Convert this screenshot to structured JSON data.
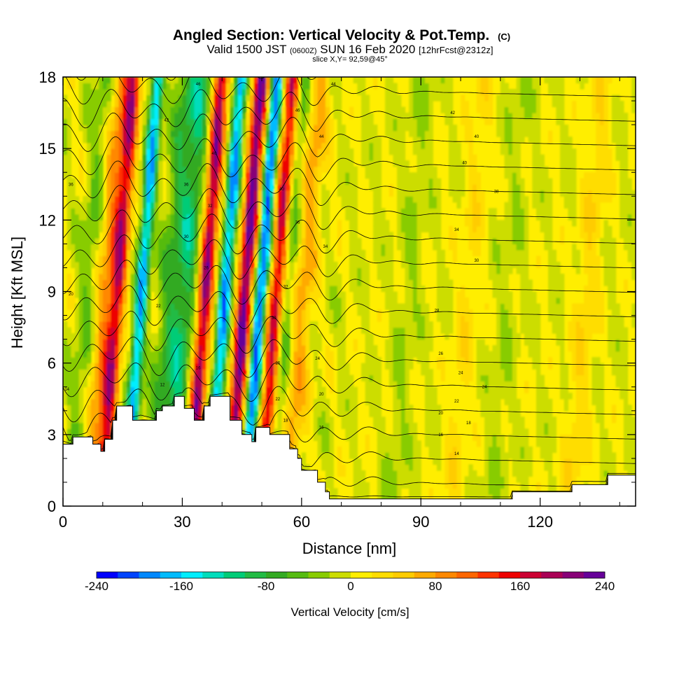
{
  "header": {
    "title_main": "Angled Section: Vertical Velocity & Pot.Temp.",
    "title_unit": "(C)",
    "valid_prefix": "Valid 1500 JST",
    "valid_utc": "(0600Z)",
    "valid_date": "SUN 16 Feb 2020",
    "forecast": "[12hrFcst@2312z]",
    "slice": "slice X,Y= 92,59@45°"
  },
  "chart_data": {
    "type": "heatmap",
    "xlabel": "Distance [nm]",
    "ylabel": "Height [Kft MSL]",
    "xlim": [
      0,
      144
    ],
    "ylim": [
      0,
      18
    ],
    "x_ticks": [
      0,
      30,
      60,
      90,
      120
    ],
    "y_ticks": [
      0,
      3,
      6,
      9,
      12,
      15,
      18
    ],
    "colorbar": {
      "title": "Vertical Velocity [cm/s]",
      "min": -240,
      "max": 240,
      "tick_values": [
        -240,
        -160,
        -80,
        0,
        80,
        160,
        240
      ],
      "tick_labels": [
        "-240",
        "-160",
        "-80",
        "0",
        "80",
        "160",
        "240"
      ],
      "colors": [
        "#0000ff",
        "#0044ff",
        "#0088ff",
        "#00bbff",
        "#00eeff",
        "#00ddbb",
        "#00cc77",
        "#22bb44",
        "#33aa22",
        "#55bb11",
        "#88cc00",
        "#ccdd00",
        "#ffee00",
        "#ffdd00",
        "#ffcc00",
        "#ffaa00",
        "#ff8800",
        "#ff6600",
        "#ff3300",
        "#ee0000",
        "#cc0033",
        "#aa0055",
        "#880077",
        "#660099"
      ]
    },
    "updraft_bands": [
      {
        "x": 12,
        "w": 150
      },
      {
        "x": 34,
        "w": 200
      },
      {
        "x": 44,
        "w": 230
      },
      {
        "x": 52,
        "w": 190
      },
      {
        "x": 58,
        "w": 90
      },
      {
        "x": 9,
        "w": 90
      },
      {
        "x": 130,
        "w": 50
      },
      {
        "x": 100,
        "w": 40
      }
    ],
    "downdraft_bands": [
      {
        "x": 18,
        "w": -170
      },
      {
        "x": 39,
        "w": -180
      },
      {
        "x": 48,
        "w": -200
      },
      {
        "x": 55,
        "w": -80
      },
      {
        "x": 25,
        "w": -60
      },
      {
        "x": 5,
        "w": -50
      },
      {
        "x": 29,
        "w": -90
      },
      {
        "x": 85,
        "w": -30
      },
      {
        "x": 110,
        "w": -25
      }
    ],
    "terrain": [
      [
        0,
        2.6
      ],
      [
        2.5,
        2.6
      ],
      [
        2.5,
        2.9
      ],
      [
        7.5,
        2.9
      ],
      [
        7.5,
        2.6
      ],
      [
        9.5,
        2.6
      ],
      [
        9.5,
        2.3
      ],
      [
        10.5,
        2.3
      ],
      [
        10.5,
        2.8
      ],
      [
        12.5,
        2.8
      ],
      [
        12.5,
        3.6
      ],
      [
        13.5,
        3.6
      ],
      [
        13.5,
        4.2
      ],
      [
        17.5,
        4.2
      ],
      [
        17.5,
        3.6
      ],
      [
        23.5,
        3.6
      ],
      [
        23.5,
        4.0
      ],
      [
        25,
        4.0
      ],
      [
        25,
        4.2
      ],
      [
        28,
        4.2
      ],
      [
        28,
        4.6
      ],
      [
        30.5,
        4.6
      ],
      [
        30.5,
        4.1
      ],
      [
        33,
        4.1
      ],
      [
        33,
        3.6
      ],
      [
        35.5,
        3.6
      ],
      [
        35.5,
        4.2
      ],
      [
        37,
        4.2
      ],
      [
        37,
        4.6
      ],
      [
        42,
        4.6
      ],
      [
        42,
        3.6
      ],
      [
        45,
        3.6
      ],
      [
        45,
        3.0
      ],
      [
        47.5,
        3.0
      ],
      [
        47.5,
        2.7
      ],
      [
        48.5,
        2.7
      ],
      [
        48.5,
        3.3
      ],
      [
        52,
        3.3
      ],
      [
        52,
        3.0
      ],
      [
        57,
        3.0
      ],
      [
        57,
        2.4
      ],
      [
        59,
        2.4
      ],
      [
        59,
        2.0
      ],
      [
        60,
        2.0
      ],
      [
        60,
        1.5
      ],
      [
        64,
        1.5
      ],
      [
        64,
        1.0
      ],
      [
        66,
        1.0
      ],
      [
        66,
        0.6
      ],
      [
        67,
        0.6
      ],
      [
        67,
        0.3
      ],
      [
        113,
        0.3
      ],
      [
        113,
        0.6
      ],
      [
        128,
        0.6
      ],
      [
        128,
        0.9
      ],
      [
        137,
        0.9
      ],
      [
        137,
        1.3
      ],
      [
        144,
        1.3
      ]
    ],
    "theta_levels": [
      -10,
      -8,
      -6,
      -4,
      -2,
      0,
      2,
      4,
      6,
      8,
      10,
      12,
      14,
      16,
      18,
      20,
      22,
      24,
      26,
      28,
      30,
      32,
      34,
      36,
      38,
      40,
      42,
      44,
      46,
      48,
      50,
      52,
      54
    ],
    "contour_labels": [
      {
        "x": 34,
        "y": 17.7,
        "text": "46"
      },
      {
        "x": 26,
        "y": 16.2,
        "text": "42"
      },
      {
        "x": 38,
        "y": 14.8,
        "text": "40"
      },
      {
        "x": 31,
        "y": 13.5,
        "text": "36"
      },
      {
        "x": 2,
        "y": 13.5,
        "text": "36"
      },
      {
        "x": 37,
        "y": 12.6,
        "text": "32"
      },
      {
        "x": 31,
        "y": 11.3,
        "text": "30"
      },
      {
        "x": 36,
        "y": 10.0,
        "text": "26"
      },
      {
        "x": 24,
        "y": 8.4,
        "text": "22"
      },
      {
        "x": 2,
        "y": 8.9,
        "text": "20"
      },
      {
        "x": 34,
        "y": 5.8,
        "text": "16"
      },
      {
        "x": 25,
        "y": 5.1,
        "text": "12"
      },
      {
        "x": 1,
        "y": 4.9,
        "text": "14"
      },
      {
        "x": 59,
        "y": 16.6,
        "text": "46"
      },
      {
        "x": 65,
        "y": 15.5,
        "text": "44"
      },
      {
        "x": 55,
        "y": 13.3,
        "text": "40"
      },
      {
        "x": 59,
        "y": 11.9,
        "text": "36"
      },
      {
        "x": 66,
        "y": 10.9,
        "text": "34"
      },
      {
        "x": 56,
        "y": 9.2,
        "text": "32"
      },
      {
        "x": 53,
        "y": 7.9,
        "text": "30"
      },
      {
        "x": 54,
        "y": 6.0,
        "text": "26"
      },
      {
        "x": 64,
        "y": 6.2,
        "text": "24"
      },
      {
        "x": 54,
        "y": 4.5,
        "text": "22"
      },
      {
        "x": 65,
        "y": 4.7,
        "text": "20"
      },
      {
        "x": 56,
        "y": 3.6,
        "text": "18"
      },
      {
        "x": 65,
        "y": 3.3,
        "text": "16"
      },
      {
        "x": 68,
        "y": 17.7,
        "text": "44"
      },
      {
        "x": 98,
        "y": 16.5,
        "text": "42"
      },
      {
        "x": 104,
        "y": 15.5,
        "text": "40"
      },
      {
        "x": 101,
        "y": 14.4,
        "text": "40"
      },
      {
        "x": 109,
        "y": 13.2,
        "text": "38"
      },
      {
        "x": 99,
        "y": 11.6,
        "text": "34"
      },
      {
        "x": 104,
        "y": 10.3,
        "text": "30"
      },
      {
        "x": 94,
        "y": 8.2,
        "text": "28"
      },
      {
        "x": 95,
        "y": 6.4,
        "text": "26"
      },
      {
        "x": 100,
        "y": 5.6,
        "text": "24"
      },
      {
        "x": 106,
        "y": 5.0,
        "text": "24"
      },
      {
        "x": 99,
        "y": 4.4,
        "text": "22"
      },
      {
        "x": 95,
        "y": 3.9,
        "text": "20"
      },
      {
        "x": 102,
        "y": 3.5,
        "text": "18"
      },
      {
        "x": 95,
        "y": 3.0,
        "text": "16"
      },
      {
        "x": 99,
        "y": 2.2,
        "text": "14"
      }
    ]
  }
}
